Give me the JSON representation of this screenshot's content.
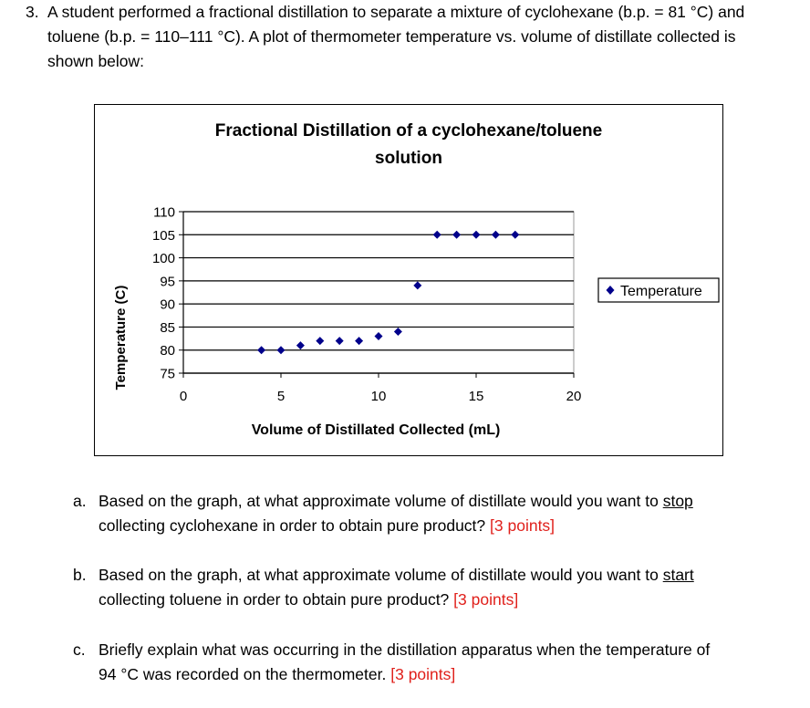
{
  "question": {
    "number": "3.",
    "text": "A student performed a fractional distillation to separate a mixture of cyclohexane (b.p. = 81 °C) and toluene (b.p. = 110–111 °C).  A plot of thermometer temperature vs. volume of distillate collected is shown below:"
  },
  "chart_data": {
    "type": "scatter",
    "title_line1": "Fractional Distillation of a cyclohexane/toluene",
    "title_line2": "solution",
    "xlabel": "Volume of Distillated Collected (mL)",
    "ylabel": "Temperature (C)",
    "xlim": [
      0,
      20
    ],
    "ylim": [
      75,
      110
    ],
    "x_ticks": [
      0,
      5,
      10,
      15,
      20
    ],
    "y_ticks": [
      75,
      80,
      85,
      90,
      95,
      100,
      105,
      110
    ],
    "grid": "horizontal",
    "legend_position": "right",
    "marker_color": "#00008b",
    "series": [
      {
        "name": "Temperature",
        "x": [
          4,
          5,
          6,
          7,
          8,
          9,
          10,
          11,
          12,
          13,
          14,
          15,
          16,
          17
        ],
        "y": [
          80,
          80,
          81,
          82,
          82,
          82,
          83,
          84,
          94,
          105,
          105,
          105,
          105,
          105
        ]
      }
    ]
  },
  "sub_questions": [
    {
      "label": "a.",
      "line1_pre": "Based on the graph, at what approximate volume of distillate would you want to ",
      "line1_emph": "stop",
      "line2": "collecting cyclohexane in order to obtain pure product?",
      "points": "[3 points]"
    },
    {
      "label": "b.",
      "line1_pre": "Based on the graph, at what approximate volume of distillate would you want to ",
      "line1_emph": "start",
      "line2": "collecting toluene in order to obtain pure product?",
      "points": "[3 points]"
    },
    {
      "label": "c.",
      "line1_pre": "Briefly explain what was occurring in the distillation apparatus when the temperature of",
      "line1_emph": "",
      "line2": "94 °C was recorded on the thermometer.",
      "points": "[3 points]"
    }
  ]
}
